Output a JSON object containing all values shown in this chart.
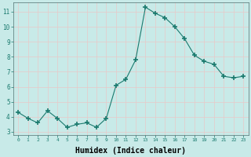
{
  "x": [
    0,
    1,
    2,
    3,
    4,
    5,
    6,
    7,
    8,
    9,
    10,
    11,
    12,
    13,
    14,
    15,
    16,
    17,
    18,
    19,
    20,
    21,
    22,
    23
  ],
  "y": [
    4.3,
    3.9,
    3.6,
    4.4,
    3.9,
    3.3,
    3.5,
    3.6,
    3.3,
    3.9,
    6.1,
    6.5,
    7.8,
    11.3,
    10.9,
    10.6,
    10.0,
    9.2,
    8.1,
    7.7,
    7.5,
    6.7,
    6.6,
    6.7
  ],
  "line_color": "#1a7a6e",
  "marker": "+",
  "marker_size": 4,
  "bg_color": "#c8eae8",
  "grid_color_major": "#e8c8c8",
  "grid_color_minor": "#e8e8e8",
  "xlabel": "Humidex (Indice chaleur)",
  "xlabel_fontsize": 7,
  "ytick_labels": [
    "3",
    "4",
    "5",
    "6",
    "7",
    "8",
    "9",
    "10",
    "11"
  ],
  "ytick_values": [
    3,
    4,
    5,
    6,
    7,
    8,
    9,
    10,
    11
  ],
  "xtick_labels": [
    "0",
    "1",
    "2",
    "3",
    "4",
    "5",
    "6",
    "7",
    "8",
    "9",
    "10",
    "11",
    "12",
    "13",
    "14",
    "15",
    "16",
    "17",
    "18",
    "19",
    "20",
    "21",
    "22",
    "23"
  ],
  "xlim": [
    -0.5,
    23.5
  ],
  "ylim": [
    2.8,
    11.6
  ]
}
